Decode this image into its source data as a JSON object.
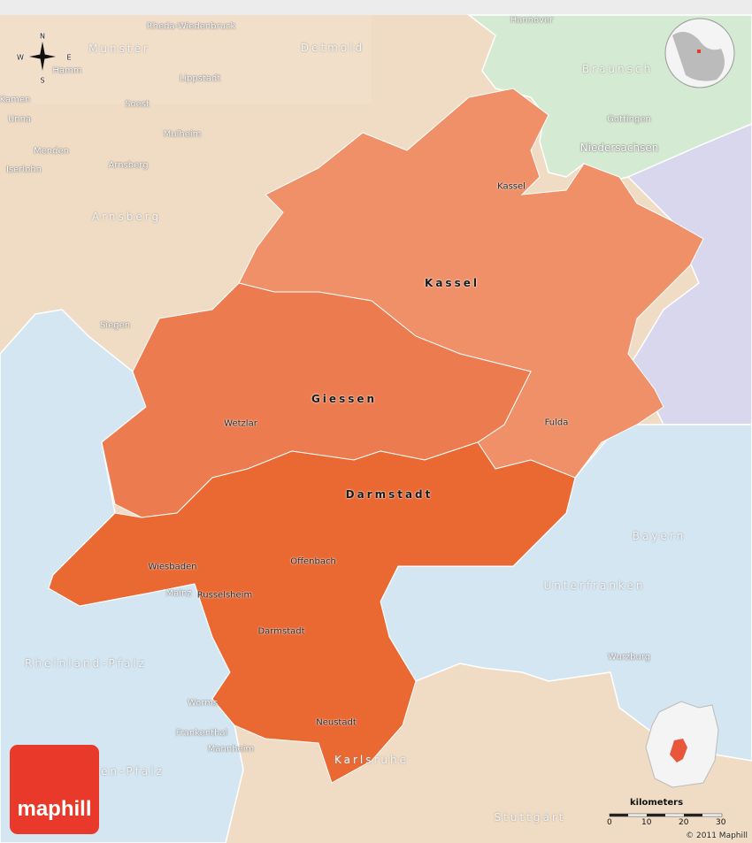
{
  "colors": {
    "kassel": "#ef9068",
    "giessen": "#ec7b4f",
    "darmstadt": "#ea6832",
    "nrw": "#f0dcc4",
    "niedersachsen": "#d5ead2",
    "thueringen": "#d9d7ee",
    "water_states": "#d4e6f2",
    "bw": "#efdcc3"
  },
  "regions": {
    "kassel": "Kassel",
    "giessen": "Giessen",
    "darmstadt": "Darmstadt",
    "munster": "Munster",
    "detmold": "Detmold",
    "arnsberg": "Arnsberg",
    "braunsch": "Braunsch",
    "niedersachsen": "Niedersachsen",
    "bayern": "Bayern",
    "unterfranken": "Unterfranken",
    "rheinland_pfalz": "Rheinland-Pfalz",
    "pfalz_partial": "en-Pfalz",
    "karlsruhe": "Karlsruhe",
    "stuttgart": "Stuttgart"
  },
  "cities": {
    "rheda": "Rheda-Wiedenbruck",
    "hamm": "Hamm",
    "lippstadt": "Lippstadt",
    "kamen": "Kamen",
    "unna": "Unna",
    "soest": "Soest",
    "mulheim": "Mulheim",
    "menden": "Menden",
    "iserlohn": "Iserlohn",
    "arnsberg": "Arnsberg",
    "siegen": "Siegen",
    "hannover": "Hannover",
    "gottingen": "Gottingen",
    "kassel": "Kassel",
    "wetzlar": "Wetzlar",
    "fulda": "Fulda",
    "wiesbaden": "Wiesbaden",
    "offenbach": "Offenbach",
    "mainz": "Mainz",
    "russelsheim": "Russelsheim",
    "darmstadt": "Darmstadt",
    "worms": "Worms",
    "frankenthal": "Frankenthal",
    "mannheim": "Mannheim",
    "neustadt": "Neustadt",
    "wurzburg": "Wurzburg"
  },
  "compass": {
    "n": "N",
    "s": "S",
    "e": "E",
    "w": "W"
  },
  "scale": {
    "unit": "kilometers",
    "ticks": [
      "0",
      "10",
      "20",
      "30"
    ]
  },
  "logo": "maphill",
  "watermark": "maphill",
  "copyright": "© 2011 Maphill"
}
